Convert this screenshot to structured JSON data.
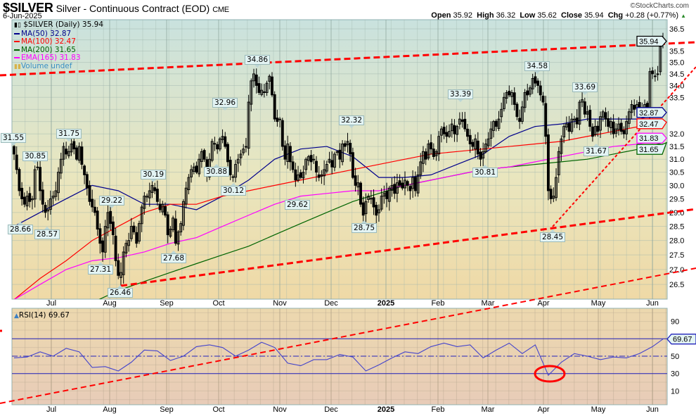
{
  "header": {
    "symbol": "$SILVER",
    "name": "Silver - Continuous Contract (EOD)",
    "exchange": "CME",
    "date": "6-Jun-2025",
    "copyright": "©StockCharts.com",
    "open_label": "Open",
    "open": "35.92",
    "high_label": "High",
    "high": "36.32",
    "low_label": "Low",
    "low": "35.62",
    "close_label": "Close",
    "close": "35.94",
    "chg_label": "Chg",
    "chg": "+0.28 (+0.77%)",
    "chg_icon": "triangle-up-icon"
  },
  "legend": {
    "price": "$SILVER (Daily) 35.94",
    "volume": "Volume undef"
  },
  "colors": {
    "ma50": "#00008b",
    "ma100": "#ff0000",
    "ma200": "#006400",
    "ema165": "#ff00ff",
    "volume_text": "#3a8fc4",
    "trendline": "#ff0000",
    "rsi": "#4444cc",
    "bg_top": "#c9e2de",
    "bg_mid": "#e9e6bf",
    "bg_bottom": "#efd9a6",
    "rsi_bg_top": "#ecd8ae",
    "rsi_bg_bottom": "#e8ccb8"
  },
  "x_ticks": [
    "Jul",
    "Aug",
    "Sep",
    "Oct",
    "Nov",
    "Dec",
    "2025",
    "Feb",
    "Mar",
    "Apr",
    "May",
    "Jun"
  ],
  "chart_data": [
    {
      "type": "candlestick",
      "title": "$SILVER (Daily)",
      "y_scale": "log",
      "ylim": [
        26.2,
        36.8
      ],
      "grid": true,
      "legend_position": "top-left",
      "y_ticks": [
        "36.5",
        "35.5",
        "35.0",
        "34.5",
        "34.0",
        "33.5",
        "32.0",
        "31.5",
        "31.0",
        "30.5",
        "30.0",
        "29.5",
        "29.0",
        "28.5",
        "28.0",
        "27.5",
        "27.0",
        "26.5"
      ],
      "last_price": "35.94",
      "close": [
        31.2,
        30.6,
        29.8,
        29.5,
        29.3,
        29.6,
        29.4,
        29.5,
        30.6,
        30.7,
        29.8,
        29.3,
        29.0,
        29.1,
        29.5,
        29.6,
        29.8,
        30.5,
        31.0,
        31.5,
        31.2,
        31.3,
        31.6,
        31.4,
        31.0,
        31.5,
        30.8,
        30.4,
        29.9,
        29.4,
        29.2,
        29.0,
        28.4,
        27.9,
        27.6,
        28.5,
        29.0,
        28.6,
        28.2,
        27.3,
        26.8,
        26.9,
        27.6,
        27.9,
        28.0,
        28.5,
        28.3,
        27.9,
        28.6,
        29.2,
        29.6,
        29.6,
        29.8,
        30.0,
        29.8,
        29.4,
        29.1,
        29.3,
        28.9,
        28.2,
        28.4,
        28.8,
        27.9,
        28.3,
        28.6,
        29.4,
        29.9,
        30.3,
        30.6,
        30.7,
        30.5,
        31.0,
        31.3,
        31.0,
        30.4,
        31.0,
        31.7,
        31.6,
        31.4,
        31.8,
        31.9,
        31.5,
        30.9,
        30.4,
        30.3,
        30.8,
        31.0,
        31.2,
        31.4,
        31.5,
        33.3,
        34.2,
        34.5,
        34.0,
        33.7,
        33.8,
        33.7,
        34.1,
        34.4,
        33.6,
        32.6,
        32.5,
        32.6,
        31.5,
        31.0,
        31.6,
        30.9,
        30.6,
        30.2,
        30.4,
        30.3,
        30.5,
        31.0,
        31.1,
        30.9,
        31.0,
        30.5,
        30.3,
        30.4,
        30.6,
        30.8,
        31.0,
        30.7,
        31.2,
        31.3,
        31.0,
        31.6,
        31.5,
        31.7,
        31.2,
        30.3,
        30.0,
        30.1,
        29.3,
        28.9,
        29.4,
        29.6,
        29.5,
        29.2,
        28.9,
        29.1,
        29.6,
        29.7,
        29.5,
        29.9,
        30.0,
        29.7,
        30.1,
        30.0,
        29.9,
        30.2,
        30.0,
        29.8,
        30.3,
        29.8,
        30.4,
        30.9,
        31.3,
        31.0,
        31.6,
        31.4,
        31.1,
        31.3,
        31.9,
        32.2,
        32.0,
        31.9,
        32.1,
        32.4,
        32.0,
        32.3,
        32.6,
        32.5,
        32.2,
        31.9,
        31.6,
        31.5,
        31.8,
        31.2,
        31.0,
        31.3,
        31.6,
        31.8,
        32.2,
        32.5,
        32.3,
        32.6,
        33.0,
        33.5,
        33.7,
        33.6,
        33.7,
        33.2,
        32.7,
        32.5,
        33.1,
        33.7,
        33.6,
        33.9,
        34.3,
        34.1,
        34.0,
        33.6,
        33.3,
        31.9,
        29.8,
        29.5,
        29.6,
        30.3,
        31.3,
        31.8,
        32.3,
        32.4,
        32.1,
        32.6,
        32.6,
        32.4,
        33.3,
        33.4,
        32.8,
        32.9,
        32.3,
        31.9,
        32.3,
        32.1,
        32.7,
        32.9,
        32.6,
        32.3,
        32.5,
        32.0,
        32.2,
        32.4,
        32.1,
        32.0,
        32.5,
        32.9,
        33.2,
        33.0,
        33.2,
        33.0,
        32.9,
        33.2,
        33.0,
        34.6,
        34.5,
        34.4,
        34.5,
        35.7,
        35.94
      ],
      "overlays": [
        {
          "key": "ma50",
          "name": "MA(50)",
          "last": "32.87",
          "values": [
            28.5,
            29.0,
            29.5,
            30.0,
            29.8,
            29.3,
            29.3,
            29.1,
            29.6,
            30.2,
            31.0,
            31.4,
            31.5,
            31.1,
            30.3,
            30.3,
            30.4,
            30.8,
            31.2,
            31.9,
            32.3,
            32.4,
            32.6,
            32.6,
            32.6,
            32.87
          ]
        },
        {
          "key": "ma100",
          "name": "MA(100)",
          "last": "32.47",
          "values": [
            26.0,
            26.7,
            27.3,
            28.0,
            28.5,
            29.0,
            29.3,
            29.3,
            29.6,
            29.8,
            30.0,
            30.2,
            30.4,
            30.6,
            30.8,
            31.0,
            31.2,
            31.3,
            31.4,
            31.5,
            31.6,
            31.7,
            31.9,
            32.1,
            32.3,
            32.47
          ]
        },
        {
          "key": "ma200",
          "name": "MA(200)",
          "last": "31.65",
          "values": [
            25.0,
            25.3,
            25.6,
            25.9,
            26.3,
            26.6,
            26.9,
            27.2,
            27.5,
            27.8,
            28.2,
            28.6,
            29.0,
            29.4,
            29.7,
            30.0,
            30.2,
            30.4,
            30.6,
            30.7,
            30.8,
            30.9,
            31.0,
            31.2,
            31.4,
            31.65
          ]
        },
        {
          "key": "ema165",
          "name": "EMA(165)",
          "last": "31.83",
          "values": [
            26.0,
            26.5,
            27.0,
            27.3,
            27.4,
            27.6,
            27.9,
            28.1,
            28.5,
            28.9,
            29.3,
            29.6,
            29.7,
            29.8,
            29.8,
            30.0,
            30.2,
            30.4,
            30.6,
            30.7,
            30.9,
            31.1,
            31.3,
            31.5,
            31.6,
            31.83
          ]
        }
      ],
      "annotations": [
        "31.55",
        "30.85",
        "28.66",
        "28.57",
        "31.75",
        "27.31",
        "29.22",
        "26.46",
        "30.19",
        "27.68",
        "32.96",
        "30.88",
        "30.12",
        "34.86",
        "29.62",
        "32.32",
        "28.75",
        "33.39",
        "30.81",
        "34.58",
        "28.45",
        "33.69",
        "31.67"
      ]
    },
    {
      "type": "line",
      "title": "RSI(14)",
      "last": "69.67",
      "ylim": [
        0,
        100
      ],
      "y_ticks": [
        "90",
        "50",
        "30",
        "10"
      ],
      "reference_lines": [
        70,
        50,
        30
      ],
      "values": [
        48,
        49,
        55,
        50,
        59,
        55,
        37,
        38,
        33,
        43,
        57,
        56,
        45,
        50,
        61,
        63,
        60,
        50,
        57,
        66,
        60,
        42,
        39,
        46,
        46,
        52,
        49,
        33,
        40,
        48,
        55,
        53,
        61,
        65,
        61,
        63,
        48,
        57,
        65,
        53,
        63,
        28,
        43,
        53,
        50,
        46,
        49,
        48,
        53,
        61,
        69.67
      ]
    }
  ]
}
